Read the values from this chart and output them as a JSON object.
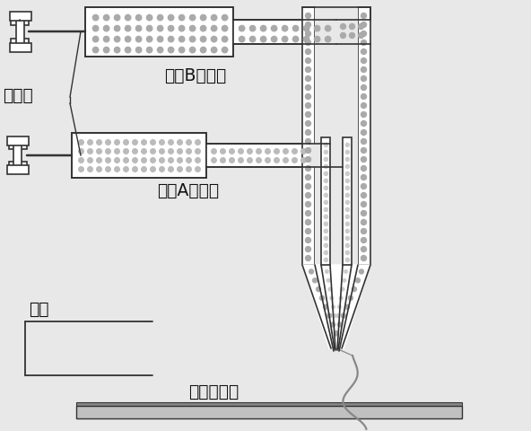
{
  "bg_color": "#e8e8e8",
  "line_color": "#333333",
  "white": "#ffffff",
  "dot_color_B": "#aaaaaa",
  "dot_color_A": "#bbbbbb",
  "dot_color_small": "#cccccc",
  "gray_plate": "#c0c0c0",
  "spiral_color": "#888888",
  "labels": {
    "inject_pump": "注射泵",
    "comp_B": "组分B纺丝液",
    "comp_A": "组分A纺丝液",
    "high_volt": "高压",
    "collector": "纺丝接收器"
  },
  "font_size": 13.5
}
